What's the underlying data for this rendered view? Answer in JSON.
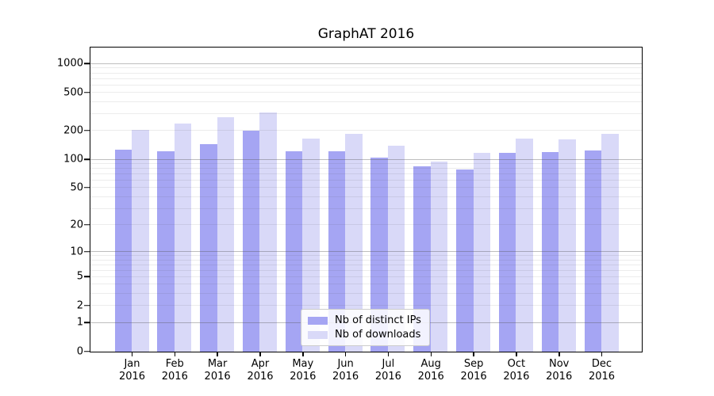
{
  "title": "GraphAT 2016",
  "chart_data": {
    "type": "bar",
    "title": "GraphAT 2016",
    "categories": [
      "Jan 2016",
      "Feb 2016",
      "Mar 2016",
      "Apr 2016",
      "May 2016",
      "Jun 2016",
      "Jul 2016",
      "Aug 2016",
      "Sep 2016",
      "Oct 2016",
      "Nov 2016",
      "Dec 2016"
    ],
    "x_tick_line1": [
      "Jan",
      "Feb",
      "Mar",
      "Apr",
      "May",
      "Jun",
      "Jul",
      "Aug",
      "Sep",
      "Oct",
      "Nov",
      "Dec"
    ],
    "x_tick_line2": "2016",
    "series": [
      {
        "name": "Nb of distinct IPs",
        "color": "#a5a5f3",
        "values": [
          127,
          123,
          145,
          203,
          123,
          123,
          104,
          85,
          78,
          118,
          120,
          125
        ]
      },
      {
        "name": "Nb of downloads",
        "color": "#d9d9f8",
        "values": [
          204,
          241,
          279,
          312,
          165,
          188,
          141,
          95,
          117,
          165,
          163,
          188
        ]
      }
    ],
    "yscale": "log1p",
    "ylim": [
      0,
      1461
    ],
    "y_tick_values": [
      0,
      1,
      2,
      5,
      10,
      20,
      50,
      100,
      200,
      500,
      1000
    ],
    "y_major_gridlines": [
      1,
      10,
      100,
      1000
    ],
    "grid": "horizontal, majors solid gray, minors faint, drawn over bars",
    "legend_position": "lower-center"
  },
  "colors": {
    "background": "#ffffff",
    "bar_distinct_ips": "#a5a5f3",
    "bar_downloads": "#d9d9f8",
    "major_grid": "#b0b0b0",
    "minor_grid": "#e8e8e8",
    "axis": "#000000",
    "text": "#000000",
    "legend_border": "#cccccc",
    "legend_background": "rgba(255,255,255,0.85)"
  }
}
